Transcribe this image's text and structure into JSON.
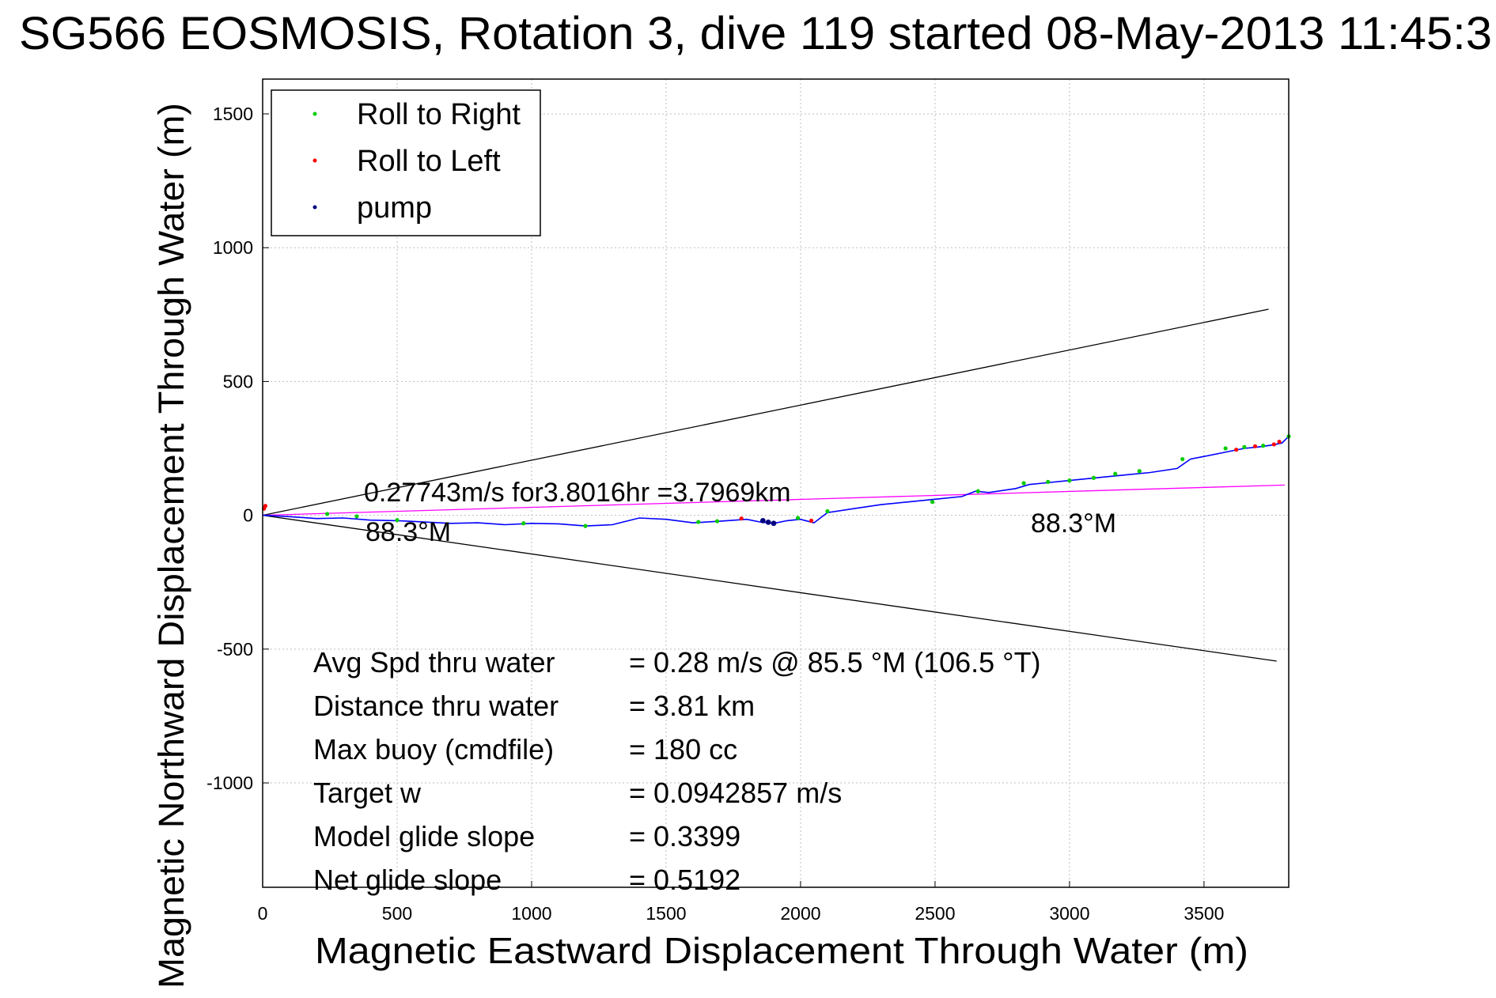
{
  "chart_data": {
    "type": "line",
    "title": "SG566 EOSMOSIS, Rotation 3, dive 119 started 08-May-2013 11:45:3",
    "xlabel": "Magnetic Eastward Displacement Through Water (m)",
    "ylabel": "Magnetic Northward Displacement Through Water (m)",
    "xlim": [
      0,
      3815
    ],
    "ylim": [
      -1390,
      1630
    ],
    "x_ticks": [
      0,
      500,
      1000,
      1500,
      2000,
      2500,
      3000,
      3500
    ],
    "x_tick_labels": [
      "0",
      "500",
      "1000",
      "1500",
      "2000",
      "2500",
      "3000",
      "3500"
    ],
    "y_ticks": [
      1500,
      1000,
      500,
      0,
      -500,
      -1000
    ],
    "y_tick_labels": [
      "1500",
      "1000",
      "500",
      "0",
      "-500",
      "-1000"
    ],
    "grid": true,
    "legend_position": "top-left",
    "legend": [
      {
        "label": "Roll to Right",
        "color": "#00cc00"
      },
      {
        "label": "Roll to Left",
        "color": "#ff0000"
      },
      {
        "label": "pump",
        "color": "#000080"
      }
    ],
    "track": {
      "color": "#0000ff",
      "x": [
        0,
        100,
        200,
        300,
        400,
        500,
        600,
        700,
        800,
        900,
        1000,
        1100,
        1200,
        1300,
        1400,
        1500,
        1600,
        1700,
        1800,
        1850,
        1900,
        1950,
        2000,
        2050,
        2100,
        2200,
        2300,
        2400,
        2500,
        2600,
        2650,
        2700,
        2800,
        2850,
        2900,
        3000,
        3100,
        3200,
        3300,
        3400,
        3450,
        3500,
        3600,
        3650,
        3700,
        3750,
        3790,
        3815
      ],
      "y": [
        0,
        -5,
        -12,
        -10,
        -18,
        -20,
        -25,
        -30,
        -28,
        -35,
        -30,
        -32,
        -40,
        -35,
        -10,
        -15,
        -28,
        -22,
        -15,
        -25,
        -30,
        -20,
        -15,
        -28,
        10,
        25,
        40,
        50,
        60,
        70,
        90,
        85,
        100,
        115,
        120,
        130,
        140,
        150,
        160,
        175,
        210,
        220,
        240,
        250,
        255,
        262,
        270,
        295
      ]
    },
    "roll_right_points": {
      "x": [
        240,
        350,
        500,
        970,
        1200,
        1620,
        1690,
        1990,
        2100,
        2490,
        2660,
        2830,
        2920,
        3000,
        3090,
        3170,
        3260,
        3420,
        3580,
        3650,
        3720,
        3815
      ],
      "y": [
        5,
        -4,
        -18,
        -30,
        -40,
        -25,
        -22,
        -10,
        15,
        50,
        90,
        120,
        125,
        130,
        140,
        155,
        165,
        210,
        250,
        255,
        260,
        295
      ]
    },
    "roll_left_points": {
      "x": [
        5,
        10,
        1780,
        2040,
        3620,
        3690,
        3760,
        3780
      ],
      "y": [
        25,
        35,
        -12,
        -20,
        245,
        258,
        265,
        275
      ]
    },
    "pump_points": {
      "x": [
        1860,
        1880,
        1900
      ],
      "y": [
        -20,
        -26,
        -30
      ]
    },
    "reference_lines": [
      {
        "color": "#000000",
        "x": [
          0,
          3740
        ],
        "y": [
          0,
          770
        ]
      },
      {
        "color": "#000000",
        "x": [
          0,
          3770
        ],
        "y": [
          0,
          -545
        ]
      },
      {
        "color": "#ff00ff",
        "x": [
          0,
          3800
        ],
        "y": [
          0,
          113
        ]
      }
    ],
    "annotations": {
      "speed_line": "0.27743m/s for3.8016hr =3.7969km",
      "heading_start": "88.3°M",
      "heading_end": "88.3°M"
    },
    "stats": [
      {
        "label": "Avg Spd thru water",
        "value": "=  0.28 m/s @  85.5 °M (106.5 °T)"
      },
      {
        "label": "Distance thru water",
        "value": "=  3.81 km"
      },
      {
        "label": "Max buoy (cmdfile)",
        "value": "= 180 cc"
      },
      {
        "label": "Target w",
        "value": "= 0.0942857 m/s"
      },
      {
        "label": "Model glide slope",
        "value": "= 0.3399"
      },
      {
        "label": "Net glide slope",
        "value": "= 0.5192"
      }
    ]
  }
}
